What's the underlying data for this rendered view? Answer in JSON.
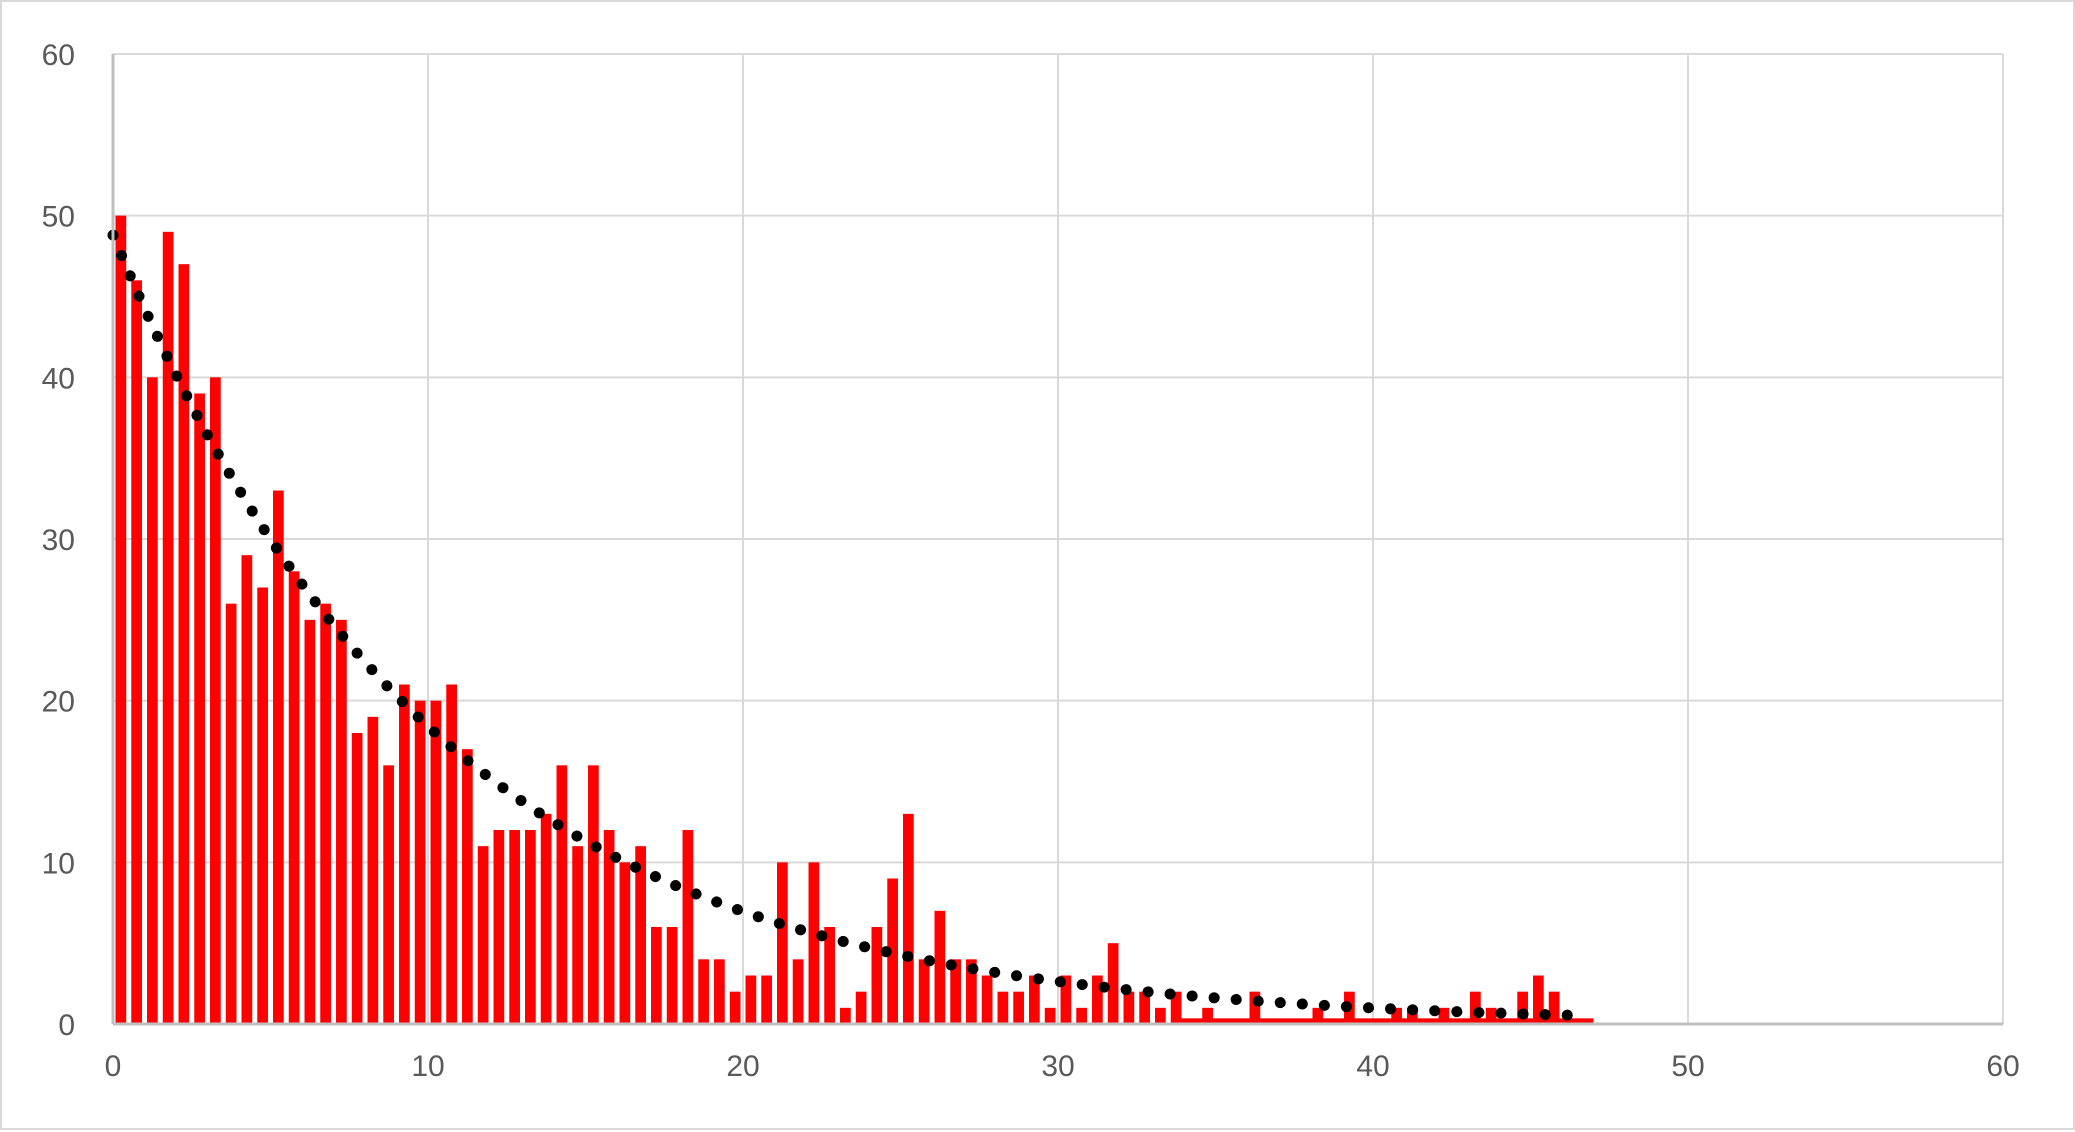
{
  "chart_data": {
    "type": "bar",
    "title": "",
    "xlabel": "",
    "ylabel": "",
    "xlim": [
      0,
      60
    ],
    "ylim": [
      0,
      60
    ],
    "x_ticks": [
      "0",
      "10",
      "20",
      "30",
      "40",
      "50",
      "60"
    ],
    "y_ticks": [
      "0",
      "10",
      "20",
      "30",
      "40",
      "50",
      "60"
    ],
    "grid": true,
    "legend": "none",
    "bar_width": 0.5,
    "bar_color": "#ff0000",
    "trend_color": "#000000",
    "grid_color": "#d9d9d9",
    "x": [
      0.25,
      0.75,
      1.25,
      1.75,
      2.25,
      2.75,
      3.25,
      3.75,
      4.25,
      4.75,
      5.25,
      5.75,
      6.25,
      6.75,
      7.25,
      7.75,
      8.25,
      8.75,
      9.25,
      9.75,
      10.25,
      10.75,
      11.25,
      11.75,
      12.25,
      12.75,
      13.25,
      13.75,
      14.25,
      14.75,
      15.25,
      15.75,
      16.25,
      16.75,
      17.25,
      17.75,
      18.25,
      18.75,
      19.25,
      19.75,
      20.25,
      20.75,
      21.25,
      21.75,
      22.25,
      22.75,
      23.25,
      23.75,
      24.25,
      24.75,
      25.25,
      25.75,
      26.25,
      26.75,
      27.25,
      27.75,
      28.25,
      28.75,
      29.25,
      29.75,
      30.25,
      30.75,
      31.25,
      31.75,
      32.25,
      32.75,
      33.25,
      33.75,
      34.25,
      34.75,
      35.25,
      35.75,
      36.25,
      36.75,
      37.25,
      37.75,
      38.25,
      38.75,
      39.25,
      39.75,
      40.25,
      40.75,
      41.25,
      41.75,
      42.25,
      42.75,
      43.25,
      43.75,
      44.25,
      44.75,
      45.25,
      45.75,
      46.25,
      46.75
    ],
    "values": [
      50,
      46,
      40,
      49,
      47,
      39,
      40,
      26,
      29,
      27,
      33,
      28,
      25,
      26,
      25,
      18,
      19,
      16,
      21,
      20,
      20,
      21,
      17,
      11,
      12,
      12,
      12,
      13,
      16,
      11,
      16,
      12,
      10,
      11,
      6,
      6,
      12,
      4,
      4,
      2,
      3,
      3,
      10,
      4,
      10,
      6,
      1,
      2,
      6,
      9,
      13,
      4,
      7,
      4,
      4,
      3,
      2,
      2,
      3,
      1,
      3,
      1,
      3,
      5,
      2,
      2,
      1,
      2,
      0,
      1,
      0,
      0,
      2,
      0,
      0,
      0,
      1,
      0,
      2,
      0,
      0,
      1,
      1,
      0,
      1,
      0,
      2,
      1,
      0,
      2,
      3,
      2,
      0,
      0
    ],
    "trendline": {
      "type": "exponential",
      "style": "dotted",
      "a": 48.8,
      "b": -0.0974,
      "x_range": [
        0,
        46.5
      ]
    }
  }
}
